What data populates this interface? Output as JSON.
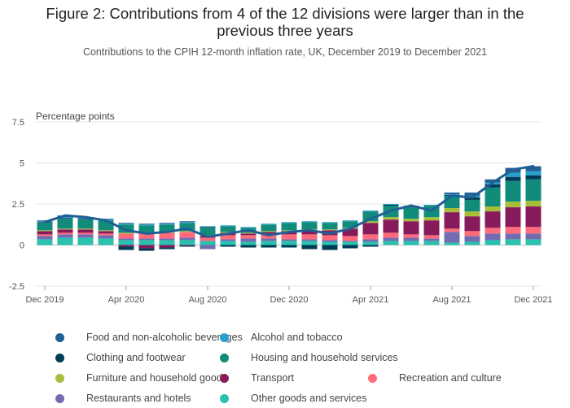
{
  "header": {
    "title_line1": "Figure 2: Contributions from 4 of the 12 divisions were larger than in the",
    "title_line2": "previous three years",
    "subtitle": "Contributions to the CPIH 12-month inflation rate, UK, December 2019 to December 2021"
  },
  "chart_data": {
    "type": "bar",
    "stacked": true,
    "ylabel": "Percentage points",
    "ylim": [
      -2.5,
      7.5
    ],
    "yticks": [
      -2.5,
      0,
      2.5,
      5,
      7.5
    ],
    "ytick_labels": [
      "-2.5",
      "0",
      "2.5",
      "5",
      "7.5"
    ],
    "categories": [
      "Dec 2019",
      "Jan 2020",
      "Feb 2020",
      "Mar 2020",
      "Apr 2020",
      "May 2020",
      "Jun 2020",
      "Jul 2020",
      "Aug 2020",
      "Sep 2020",
      "Oct 2020",
      "Nov 2020",
      "Dec 2020",
      "Jan 2021",
      "Feb 2021",
      "Mar 2021",
      "Apr 2021",
      "May 2021",
      "Jun 2021",
      "Jul 2021",
      "Aug 2021",
      "Sep 2021",
      "Oct 2021",
      "Nov 2021",
      "Dec 2021"
    ],
    "xtick_labels": [
      "Dec 2019",
      "Apr 2020",
      "Aug 2020",
      "Dec 2020",
      "Apr 2021",
      "Aug 2021",
      "Dec 2021"
    ],
    "series": [
      {
        "name": "Other goods and services",
        "color": "#2ac1af",
        "values": [
          0.35,
          0.45,
          0.45,
          0.4,
          0.3,
          0.3,
          0.3,
          0.3,
          0.25,
          0.25,
          0.2,
          0.25,
          0.25,
          0.25,
          0.2,
          0.2,
          0.2,
          0.25,
          0.25,
          0.25,
          0.15,
          0.2,
          0.3,
          0.35,
          0.35
        ]
      },
      {
        "name": "Restaurants and hotels",
        "color": "#746cb1",
        "values": [
          0.2,
          0.2,
          0.2,
          0.2,
          0.1,
          0.1,
          0.1,
          0.15,
          -0.25,
          0.1,
          0.2,
          0.15,
          0.1,
          0.1,
          0.1,
          0.05,
          0.15,
          0.2,
          0.2,
          0.15,
          0.65,
          0.35,
          0.4,
          0.35,
          0.35
        ]
      },
      {
        "name": "Recreation and culture",
        "color": "#ff6b79",
        "values": [
          0.1,
          0.1,
          0.1,
          0.1,
          0.3,
          0.3,
          0.35,
          0.35,
          0.2,
          0.25,
          0.2,
          0.25,
          0.3,
          0.3,
          0.3,
          0.3,
          0.3,
          0.3,
          0.2,
          0.2,
          0.2,
          0.3,
          0.35,
          0.4,
          0.4
        ]
      },
      {
        "name": "Transport",
        "color": "#871a5b",
        "values": [
          0.2,
          0.2,
          0.2,
          0.15,
          -0.1,
          -0.2,
          -0.15,
          -0.05,
          0.1,
          0.15,
          0.1,
          0.15,
          0.2,
          0.25,
          0.3,
          0.45,
          0.7,
          0.8,
          0.8,
          0.9,
          1.0,
          0.9,
          1.0,
          1.2,
          1.25
        ]
      },
      {
        "name": "Furniture and household goods",
        "color": "#a8bd3a",
        "values": [
          0.05,
          0.05,
          0.05,
          0.05,
          0.05,
          0.05,
          0.05,
          0.05,
          0.05,
          0.05,
          0.05,
          0.05,
          0.05,
          0.05,
          0.05,
          0.05,
          0.1,
          0.15,
          0.15,
          0.2,
          0.25,
          0.3,
          0.3,
          0.35,
          0.35
        ]
      },
      {
        "name": "Housing and household services",
        "color": "#118c7b",
        "values": [
          0.45,
          0.6,
          0.55,
          0.6,
          0.5,
          0.45,
          0.45,
          0.5,
          0.45,
          0.35,
          0.3,
          0.4,
          0.45,
          0.45,
          0.4,
          0.4,
          0.6,
          0.7,
          0.7,
          0.7,
          0.75,
          0.7,
          1.15,
          1.25,
          1.3
        ]
      },
      {
        "name": "Clothing and footwear",
        "color": "#003c57",
        "values": [
          0.05,
          0.05,
          0.05,
          0.0,
          -0.2,
          -0.15,
          -0.1,
          -0.05,
          0.05,
          -0.1,
          -0.15,
          -0.15,
          -0.15,
          -0.25,
          -0.3,
          -0.2,
          -0.1,
          0.05,
          0.05,
          0.0,
          0.05,
          0.15,
          0.2,
          0.25,
          0.25
        ]
      },
      {
        "name": "Alcohol and tobacco",
        "color": "#27a0cc",
        "values": [
          0.05,
          0.05,
          0.05,
          0.05,
          0.05,
          0.05,
          0.05,
          0.05,
          0.05,
          0.05,
          0.05,
          0.05,
          0.05,
          0.05,
          0.05,
          0.05,
          0.05,
          0.05,
          0.05,
          0.05,
          0.05,
          0.1,
          0.1,
          0.25,
          0.25
        ]
      },
      {
        "name": "Food and non-alcoholic beverages",
        "color": "#206095",
        "values": [
          0.05,
          0.1,
          0.05,
          0.05,
          0.05,
          0.05,
          0.05,
          0.05,
          0.0,
          0.0,
          0.0,
          0.0,
          0.0,
          0.0,
          0.0,
          0.0,
          0.0,
          0.0,
          0.0,
          0.0,
          0.1,
          0.2,
          0.2,
          0.3,
          0.3
        ]
      }
    ],
    "line": {
      "name": "CPIH 12-month inflation rate",
      "color": "#206095",
      "values": [
        1.4,
        1.8,
        1.7,
        1.5,
        0.9,
        0.7,
        0.8,
        1.0,
        0.5,
        0.7,
        0.9,
        0.6,
        0.8,
        0.9,
        0.7,
        1.0,
        1.6,
        2.1,
        2.4,
        2.1,
        3.0,
        2.9,
        3.8,
        4.6,
        4.8
      ]
    },
    "legend": [
      {
        "name": "Food and non-alcoholic beverages",
        "color": "#206095"
      },
      {
        "name": "Alcohol and tobacco",
        "color": "#27a0cc"
      },
      {
        "name": "Clothing and footwear",
        "color": "#003c57"
      },
      {
        "name": "Housing and household services",
        "color": "#118c7b"
      },
      {
        "name": "Furniture and household goods",
        "color": "#a8bd3a"
      },
      {
        "name": "Transport",
        "color": "#871a5b"
      },
      {
        "name": "Recreation and culture",
        "color": "#ff6b79"
      },
      {
        "name": "Restaurants and hotels",
        "color": "#746cb1"
      },
      {
        "name": "Other goods and services",
        "color": "#2ac1af"
      }
    ],
    "legend_placement": "bottom",
    "grid": true
  }
}
